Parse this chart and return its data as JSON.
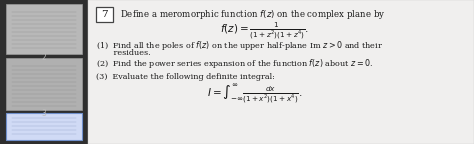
{
  "bg_color": "#2e2e2e",
  "thumb1_color": "#b8b8b8",
  "thumb2_color": "#b0b0b0",
  "thumb3_color": "#d0daf5",
  "thumb3_edge": "#7090cc",
  "main_bg": "#f0efee",
  "text_color": "#1a1a1a",
  "box_number": "7",
  "title_text": "Define a meromorphic function $f(z)$ on the complex plane by",
  "formula_fz": "$f(z) = \\frac{1}{(1+z^2)(1+z^4)}.$",
  "item1": "(1)  Find all the poles of $f(z)$ on the upper half-plane Im $z > 0$ and their",
  "item1b": "       residues.",
  "item2": "(2)  Find the power series expansion of the function $f(z)$ about $z = 0$.",
  "item3": "(3)  Evaluate the following definite integral:",
  "formula_I": "$I = \\int_{-\\infty}^{\\infty} \\frac{dx}{(1+x^2)(1+x^4)}.$",
  "label2": "2",
  "label3": "3",
  "figwidth": 4.74,
  "figheight": 1.44,
  "dpi": 100
}
